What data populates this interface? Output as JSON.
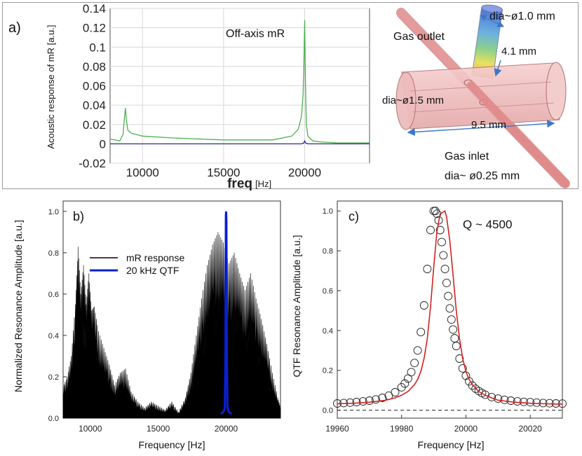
{
  "chart_data": [
    {
      "panel": "a)",
      "type": "line",
      "xlabel": "freq",
      "xunit": "[Hz]",
      "ylabel": "Acoustic response of mR [a.u.]",
      "xlim": [
        8000,
        24000
      ],
      "ylim": [
        -0.02,
        0.14
      ],
      "xticks": [
        10000,
        15000,
        20000
      ],
      "yticks": [
        -0.02,
        0,
        0.02,
        0.04,
        0.06,
        0.08,
        0.1,
        0.12,
        0.14
      ],
      "ytick_labels": [
        "-0.02",
        "0",
        "0.02",
        "0.04",
        "0.06",
        "0.08",
        "0.1",
        "0.12",
        "0.14"
      ],
      "grid": true,
      "annotations": [
        "Off-axis mR"
      ],
      "series": [
        {
          "color": "#4cb050",
          "x": [
            8000,
            8600,
            8800,
            8900,
            8950,
            9000,
            9100,
            9300,
            10000,
            12000,
            15000,
            18000,
            19200,
            19600,
            19800,
            19900,
            19950,
            20000,
            20050,
            20100,
            20200,
            20500,
            21000,
            22000,
            24000
          ],
          "y": [
            0.005,
            0.003,
            0.01,
            0.03,
            0.037,
            0.025,
            0.014,
            0.011,
            0.008,
            0.006,
            0.004,
            0.004,
            0.008,
            0.015,
            0.028,
            0.05,
            0.08,
            0.128,
            0.06,
            0.02,
            0.008,
            0.003,
            0.002,
            0.001,
            0.001
          ]
        },
        {
          "color": "#2a2a9a",
          "x": [
            8000,
            9000,
            12000,
            19800,
            19950,
            20000,
            20050,
            20200,
            24000
          ],
          "y": [
            0.0,
            0.0,
            0.0,
            0.0,
            0.001,
            0.003,
            0.001,
            0.0,
            0.0
          ]
        }
      ]
    },
    {
      "panel": "b)",
      "type": "area",
      "xlabel": "Frequency [Hz]",
      "ylabel": "Normalized Resonance Amplitude [a.u.]",
      "xlim": [
        8000,
        24000
      ],
      "ylim": [
        0,
        1.05
      ],
      "xticks": [
        10000,
        15000,
        20000
      ],
      "yticks": [
        0.0,
        0.2,
        0.4,
        0.6,
        0.8,
        1.0
      ],
      "ytick_labels": [
        "0.0",
        "0.2",
        "0.4",
        "0.6",
        "0.8",
        "1.0"
      ],
      "legend": [
        {
          "label": "mR response",
          "color": "#000000"
        },
        {
          "label": "20 kHz QTF",
          "color": "#0a1fd4"
        }
      ],
      "legend_position": "upper-left",
      "series": [
        {
          "name": "mR response",
          "color": "#000000",
          "x": [
            8000,
            8300,
            8600,
            8900,
            9100,
            9300,
            9500,
            9700,
            9900,
            10100,
            10300,
            10600,
            11000,
            11400,
            11800,
            12200,
            12600,
            13000,
            13500,
            14000,
            14500,
            15000,
            15500,
            16000,
            16500,
            17000,
            17400,
            17800,
            18200,
            18600,
            19000,
            19400,
            19800,
            20200,
            20600,
            21000,
            21400,
            21800,
            22200,
            22600,
            23000,
            23400,
            23800,
            24000
          ],
          "y": [
            0.15,
            0.2,
            0.3,
            0.55,
            0.83,
            0.6,
            0.74,
            0.55,
            0.7,
            0.52,
            0.54,
            0.42,
            0.34,
            0.26,
            0.16,
            0.22,
            0.24,
            0.13,
            0.08,
            0.05,
            0.08,
            0.06,
            0.04,
            0.08,
            0.03,
            0.1,
            0.22,
            0.4,
            0.58,
            0.74,
            0.84,
            0.9,
            0.85,
            0.75,
            0.8,
            0.7,
            0.62,
            0.7,
            0.58,
            0.48,
            0.36,
            0.22,
            0.1,
            0.05
          ]
        },
        {
          "name": "20 kHz QTF",
          "color": "#0a1fd4",
          "x": [
            19600,
            19800,
            19900,
            19950,
            19980,
            20000,
            20020,
            20050,
            20100,
            20200,
            20400
          ],
          "y": [
            0.02,
            0.03,
            0.05,
            0.3,
            0.98,
            1.0,
            0.95,
            0.3,
            0.05,
            0.03,
            0.02
          ]
        }
      ]
    },
    {
      "panel": "c)",
      "type": "scatter",
      "xlabel": "Frequency [Hz]",
      "ylabel": "QTF Resonance Amplitude [a.u.]",
      "xlim": [
        19960,
        20030
      ],
      "ylim": [
        -0.04,
        1.05
      ],
      "xticks": [
        19960,
        19980,
        20000,
        20020
      ],
      "yticks": [
        0.0,
        0.2,
        0.4,
        0.6,
        0.8,
        1.0
      ],
      "ytick_labels": [
        "0.0",
        "0.2",
        "0.4",
        "0.6",
        "0.8",
        "1.0"
      ],
      "annotations": [
        "Q ~ 4500"
      ],
      "f0": 19993.5,
      "baseline": 0.025,
      "series": [
        {
          "type": "scatter",
          "marker": "open-circle",
          "color": "#222222",
          "x": [
            19960,
            19962,
            19964,
            19966,
            19968,
            19970,
            19972,
            19974,
            19976,
            19978,
            19980,
            19981,
            19982,
            19983,
            19984,
            19985,
            19986,
            19987,
            19988,
            19989,
            19990,
            19990.5,
            19991,
            19991.5,
            19992,
            19992.5,
            19993,
            19993.5,
            19994,
            19994.5,
            19995,
            19995.5,
            19996,
            19996.5,
            19997,
            19998,
            19999,
            20000,
            20001,
            20002,
            20003,
            20004,
            20005,
            20006,
            20008,
            20010,
            20012,
            20014,
            20016,
            20018,
            20020,
            20022,
            20024,
            20026,
            20028,
            20030
          ],
          "y": [
            0.034,
            0.036,
            0.038,
            0.041,
            0.044,
            0.048,
            0.054,
            0.062,
            0.073,
            0.09,
            0.115,
            0.134,
            0.159,
            0.191,
            0.237,
            0.3,
            0.392,
            0.526,
            0.709,
            0.904,
            1.0,
            1.0,
            0.986,
            0.953,
            0.904,
            0.844,
            0.778,
            0.709,
            0.639,
            0.573,
            0.511,
            0.455,
            0.405,
            0.361,
            0.322,
            0.259,
            0.21,
            0.173,
            0.145,
            0.124,
            0.108,
            0.096,
            0.086,
            0.078,
            0.066,
            0.058,
            0.052,
            0.048,
            0.044,
            0.042,
            0.04,
            0.038,
            0.036,
            0.035,
            0.034,
            0.033
          ]
        },
        {
          "type": "line",
          "color": "#d42020",
          "x": [
            19958,
            19960,
            19965,
            19970,
            19975,
            19978,
            19980,
            19982,
            19984,
            19985,
            19986,
            19987,
            19988,
            19989,
            19990,
            19991,
            19992,
            19993,
            19993.5,
            19994,
            19995,
            19996,
            19997,
            19998,
            19999,
            20000,
            20001,
            20002,
            20004,
            20006,
            20008,
            20010,
            20015,
            20020,
            20025,
            20030
          ],
          "y": [
            0.03,
            0.032,
            0.035,
            0.04,
            0.05,
            0.062,
            0.075,
            0.094,
            0.128,
            0.155,
            0.195,
            0.26,
            0.36,
            0.52,
            0.72,
            0.9,
            0.985,
            0.995,
            1.0,
            0.97,
            0.85,
            0.68,
            0.5,
            0.36,
            0.26,
            0.195,
            0.155,
            0.128,
            0.094,
            0.075,
            0.062,
            0.05,
            0.04,
            0.035,
            0.032,
            0.03
          ]
        },
        {
          "type": "dashed-line",
          "color": "#222222",
          "x": [
            19958,
            20030
          ],
          "y": [
            0.0,
            0.0
          ]
        }
      ]
    }
  ],
  "schematic": {
    "labels": {
      "outlet": "Gas outlet",
      "outlet_dia": "dia~ø1.0 mm",
      "gap": "4.1 mm",
      "body_dia": "dia~ø1.5 mm",
      "length": "9.5 mm",
      "inlet": "Gas inlet",
      "inlet_dia": "dia~ ø0.25 mm"
    },
    "colors": {
      "tube": "#f0b8b8",
      "tube_edge": "#c07070",
      "capillary": "#e08a8a",
      "arrow": "#3a78c8"
    }
  }
}
